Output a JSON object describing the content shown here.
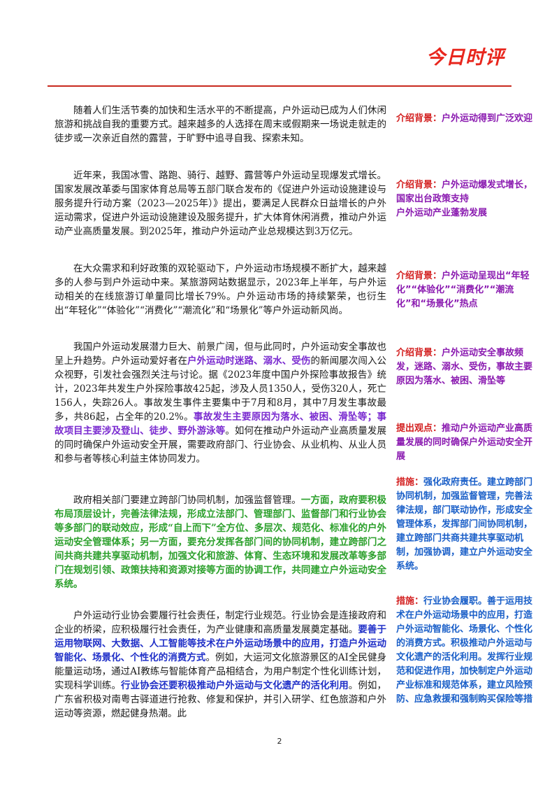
{
  "header": {
    "logo_text": "今日时评"
  },
  "main": {
    "p1": "随着人们生活节奏的加快和生活水平的不断提高，户外运动已成为人们休闲旅游和挑战自我的重要方式。越来越多的人选择在周末或假期来一场说走就走的徒步或一次亲近自然的露营，于旷野中追寻自我、探索未知。",
    "p2": "近年来，我国冰雪、路跑、骑行、越野、露营等户外运动呈现爆发式增长。国家发展改革委与国家体育总局等五部门联合发布的《促进户外运动设施建设与服务提升行动方案（2023—2025年）》提出，要满足人民群众日益增长的户外运动需求，促进户外运动设施建设及服务提升，扩大体育休闲消费，推动户外运动产业高质量发展。到2025年，推动户外运动产业总规模达到3万亿元。",
    "p3": "在大众需求和利好政策的双轮驱动下，户外运动市场规模不断扩大，越来越多的人参与到户外运动中来。某旅游网站数据显示，2023年上半年，与户外运动相关的在线旅游订单量同比增长79%。户外运动市场的持续繁荣，也衍生出“年轻化”“体验化”“消费化”“潮流化”和“场景化”等户外运动新风尚。",
    "p4": {
      "t1": "我国户外运动发展潜力巨大、前景广阔，但与此同时，户外运动安全事故也呈上升趋势。户外运动爱好者在",
      "h1": "户外运动时迷路、溺水、受伤",
      "t2": "的新闻屡次闯入公众视野，引发社会强烈关注与讨论。据《2023年度中国户外探险事故报告》统计，2023年共发生户外探险事故425起，涉及人员1350人，受伤320人，死亡156人，失踪26人。事故发生事件主要集中于7月和8月，其中7月发生事故最多，共86起，占全年的20.2%。",
      "h2": "事故发生主要原因为落水、被困、滑坠等；事故项目主要涉及登山、徒步、野外游泳等",
      "t3": "。如何在推动户外运动产业高质量发展的同时确保户外运动安全开展，需要政府部门、行业协会、从业机构、从业人员和参与者等核心利益主体协同发力。"
    },
    "p5": {
      "t1": "政府相关部门要建立跨部门协同机制，加强监督管理。",
      "h1": "一方面，政府要积极布局顶层设计，完善法律法规，形成立法部门、管理部门、监督部门和行业协会等多部门的联动效应，形成“自上而下”全方位、多层次、规范化、标准化的户外运动安全管理体系；另一方面，要充分发挥各部门间的协同机制，建立跨部门之间共商共建共享驱动机制，加强文化和旅游、体育、生态环境和发展改革等多部门在规划引领、政策扶持和资源对接等方面的协调工作，共同建立户外运动安全系统。"
    },
    "p6": {
      "t1": "户外运动行业协会要履行社会责任，制定行业规范。行业协会是连接政府和企业的桥梁，应积极履行社会责任，为产业健康和高质量发展奠定基础。",
      "h1": "要善于运用物联网、大数据、人工智能等技术在户外运动场景中的应用，打造户外运动智能化、场景化、个性化的消费方式",
      "t2": "。例如，大运河文化旅游景区的AI全民健身能量运动场，通过AI教练与智能体育产品相结合，为用户制定个性化训练计划，实现科学训练。",
      "h2": "行业协会还要积极推动户外运动与文化遗产的活化利用",
      "t3": "。例如，广东省积极对南粤古驿道进行抢救、修复和保护，并引入研学、红色旅游和户外运动等资源，燃起健身热潮。此"
    }
  },
  "sidebar": {
    "n1": {
      "label": "介绍背景：",
      "text": "户外运动得到广泛欢迎"
    },
    "n2": {
      "label": "介绍背景：",
      "text": "户外运动爆发式增长，国家出台政策支持",
      "text2": "户外运动产业蓬勃发展"
    },
    "n3": {
      "label": "介绍背景：",
      "text": "户外运动呈现出“年轻化”“体验化”“消费化”“潮流化”和“场景化”热点"
    },
    "n4": {
      "label": "介绍背景：",
      "text": "户外运动安全事故频发，迷路、溺水、受伤，事故主要原因为落水、被困、滑坠等"
    },
    "n5": {
      "label": "提出观点：",
      "text": "推动户外运动产业高质量发展的同时确保户外运动安全开展"
    },
    "n6": {
      "label": "措施：",
      "text": "强化政府责任。建立跨部门协同机制，加强监督管理，完善法律法规，部门联动协作，形成安全管理体系，发挥部门间协同机制，建立跨部门共商共建共享驱动机制，加强协调，建立户外运动安全系统。"
    },
    "n7": {
      "label": "措施：",
      "text": "行业协会履职。善于运用技术在户外运动场景中的应用，打造户外运动智能化、场景化、个性化的消费方式。积极推动户外运动与文化遗产的活化利用。发挥行业规范和促进作用，加快制定户外运动产业标准和规范体系，建立风险预防、应急救援和强制购买保险等措"
    }
  },
  "footer": {
    "page_number": "2"
  }
}
